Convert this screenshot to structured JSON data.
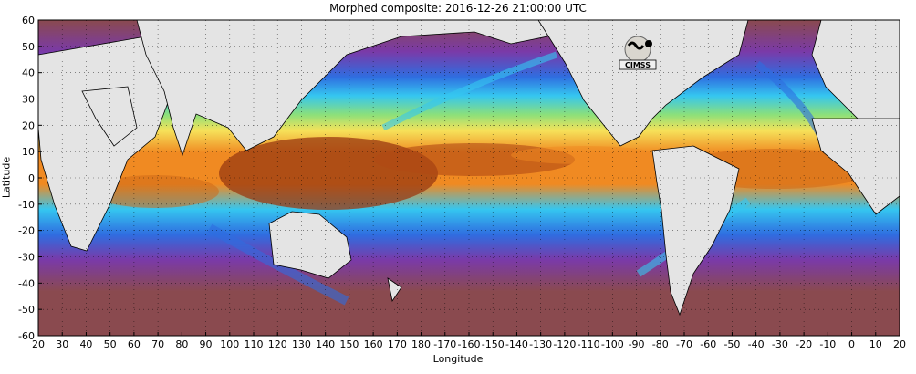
{
  "title": "Morphed composite: 2016-12-26 21:00:00 UTC",
  "xlabel": "Longitude",
  "ylabel": "Latitude",
  "logo_text": "CIMSS",
  "x_ticks": [
    "20",
    "30",
    "40",
    "50",
    "60",
    "70",
    "80",
    "90",
    "100",
    "110",
    "120",
    "130",
    "140",
    "150",
    "160",
    "170",
    "180",
    "-170",
    "-160",
    "-150",
    "-140",
    "-130",
    "-120",
    "-110",
    "-100",
    "-90",
    "-80",
    "-70",
    "-60",
    "-50",
    "-40",
    "-30",
    "-20",
    "-10",
    "0",
    "10",
    "20"
  ],
  "y_ticks": [
    "60",
    "50",
    "40",
    "30",
    "20",
    "10",
    "0",
    "-10",
    "-20",
    "-30",
    "-40",
    "-50",
    "-60"
  ],
  "colors": {
    "land": "#e4e4e4",
    "dry": "#8a4a4f",
    "moist_purple": "#7a3aa8",
    "moist_blue": "#2f6de0",
    "moist_cyan": "#35c6f0",
    "moist_green": "#8ce07a",
    "moist_yellow": "#f6e25a",
    "moist_orange": "#f08a22",
    "very_moist": "#9a3a12"
  },
  "chart_data": {
    "type": "heatmap",
    "title": "Morphed composite: 2016-12-26 21:00:00 UTC",
    "xlabel": "Longitude",
    "ylabel": "Latitude",
    "xlim": [
      20,
      380
    ],
    "ylim": [
      -60,
      60
    ],
    "grid": true,
    "tick_labels_x": [
      "20",
      "30",
      "40",
      "50",
      "60",
      "70",
      "80",
      "90",
      "100",
      "110",
      "120",
      "130",
      "140",
      "150",
      "160",
      "170",
      "180",
      "-170",
      "-160",
      "-150",
      "-140",
      "-130",
      "-120",
      "-110",
      "-100",
      "-90",
      "-80",
      "-70",
      "-60",
      "-50",
      "-40",
      "-30",
      "-20",
      "-10",
      "0",
      "10",
      "20"
    ],
    "tick_labels_y": [
      "60",
      "50",
      "40",
      "30",
      "20",
      "10",
      "0",
      "-10",
      "-20",
      "-30",
      "-40",
      "-50",
      "-60"
    ]
  }
}
